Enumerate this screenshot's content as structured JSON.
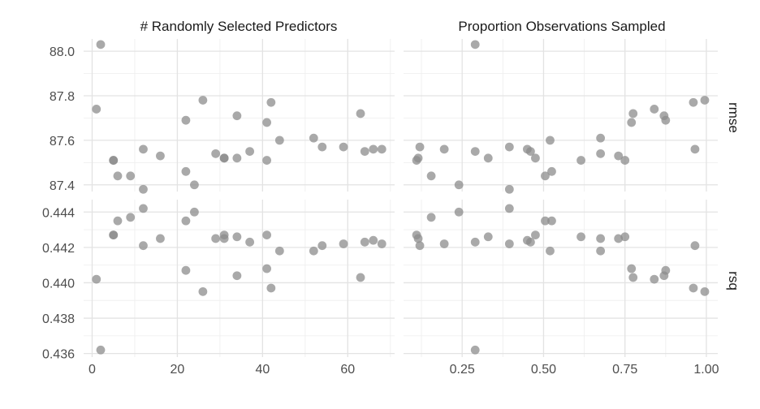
{
  "chart_data": {
    "type": "scatter",
    "title": "",
    "column_titles": [
      "# Randomly Selected Predictors",
      "Proportion Observations Sampled"
    ],
    "row_titles": [
      "rmse",
      "rsq"
    ],
    "x_axes": [
      {
        "lim": [
          -2,
          71
        ],
        "ticks": [
          0,
          20,
          40,
          60
        ],
        "tick_labels": [
          "0",
          "20",
          "40",
          "60"
        ],
        "minor": [
          10,
          30,
          50,
          70
        ]
      },
      {
        "lim": [
          0.07,
          1.035
        ],
        "ticks": [
          0.25,
          0.5,
          0.75,
          1.0
        ],
        "tick_labels": [
          "0.25",
          "0.50",
          "0.75",
          "1.00"
        ],
        "minor": [
          0.125,
          0.375,
          0.625,
          0.875
        ]
      }
    ],
    "y_axes": [
      {
        "lim": [
          87.37,
          88.055
        ],
        "ticks": [
          87.4,
          87.6,
          87.8,
          88.0
        ],
        "tick_labels": [
          "87.4",
          "87.6",
          "87.8",
          "88.0"
        ],
        "minor": [
          87.5,
          87.7,
          87.9
        ]
      },
      {
        "lim": [
          0.4358,
          0.4447
        ],
        "ticks": [
          0.436,
          0.438,
          0.44,
          0.442,
          0.444
        ],
        "tick_labels": [
          "0.436",
          "0.438",
          "0.440",
          "0.442",
          "0.444"
        ],
        "minor": [
          0.437,
          0.439,
          0.441,
          0.443
        ]
      }
    ],
    "panels": [
      {
        "row": 0,
        "col": 0,
        "points": [
          [
            1,
            87.74
          ],
          [
            2,
            88.03
          ],
          [
            5,
            87.51
          ],
          [
            5,
            87.51
          ],
          [
            6,
            87.44
          ],
          [
            9,
            87.44
          ],
          [
            12,
            87.56
          ],
          [
            12,
            87.38
          ],
          [
            16,
            87.53
          ],
          [
            22,
            87.69
          ],
          [
            22,
            87.46
          ],
          [
            24,
            87.4
          ],
          [
            26,
            87.78
          ],
          [
            29,
            87.54
          ],
          [
            31,
            87.52
          ],
          [
            31,
            87.52
          ],
          [
            34,
            87.71
          ],
          [
            34,
            87.52
          ],
          [
            37,
            87.55
          ],
          [
            41,
            87.68
          ],
          [
            41,
            87.51
          ],
          [
            42,
            87.77
          ],
          [
            44,
            87.6
          ],
          [
            52,
            87.61
          ],
          [
            54,
            87.57
          ],
          [
            59,
            87.57
          ],
          [
            63,
            87.72
          ],
          [
            64,
            87.55
          ],
          [
            66,
            87.56
          ],
          [
            68,
            87.56
          ]
        ]
      },
      {
        "row": 0,
        "col": 1,
        "points": [
          [
            0.11,
            87.51
          ],
          [
            0.115,
            87.52
          ],
          [
            0.12,
            87.57
          ],
          [
            0.155,
            87.44
          ],
          [
            0.195,
            87.56
          ],
          [
            0.24,
            87.4
          ],
          [
            0.29,
            88.03
          ],
          [
            0.29,
            87.55
          ],
          [
            0.33,
            87.52
          ],
          [
            0.395,
            87.57
          ],
          [
            0.395,
            87.38
          ],
          [
            0.45,
            87.56
          ],
          [
            0.46,
            87.55
          ],
          [
            0.475,
            87.52
          ],
          [
            0.505,
            87.44
          ],
          [
            0.52,
            87.6
          ],
          [
            0.525,
            87.46
          ],
          [
            0.615,
            87.51
          ],
          [
            0.675,
            87.61
          ],
          [
            0.675,
            87.54
          ],
          [
            0.73,
            87.53
          ],
          [
            0.75,
            87.51
          ],
          [
            0.77,
            87.68
          ],
          [
            0.775,
            87.72
          ],
          [
            0.84,
            87.74
          ],
          [
            0.87,
            87.71
          ],
          [
            0.875,
            87.69
          ],
          [
            0.96,
            87.77
          ],
          [
            0.965,
            87.56
          ],
          [
            0.995,
            87.78
          ]
        ]
      },
      {
        "row": 1,
        "col": 0,
        "points": [
          [
            1,
            0.4402
          ],
          [
            2,
            0.4362
          ],
          [
            5,
            0.4427
          ],
          [
            5,
            0.4427
          ],
          [
            6,
            0.4435
          ],
          [
            9,
            0.4437
          ],
          [
            12,
            0.4442
          ],
          [
            12,
            0.4421
          ],
          [
            16,
            0.4425
          ],
          [
            22,
            0.4435
          ],
          [
            22,
            0.4407
          ],
          [
            24,
            0.444
          ],
          [
            26,
            0.4395
          ],
          [
            29,
            0.4425
          ],
          [
            31,
            0.4427
          ],
          [
            31,
            0.4425
          ],
          [
            34,
            0.4426
          ],
          [
            34,
            0.4404
          ],
          [
            37,
            0.4423
          ],
          [
            41,
            0.4427
          ],
          [
            41,
            0.4408
          ],
          [
            42,
            0.4397
          ],
          [
            44,
            0.4418
          ],
          [
            52,
            0.4418
          ],
          [
            54,
            0.4421
          ],
          [
            59,
            0.4422
          ],
          [
            63,
            0.4403
          ],
          [
            64,
            0.4423
          ],
          [
            66,
            0.4424
          ],
          [
            68,
            0.4422
          ]
        ]
      },
      {
        "row": 1,
        "col": 1,
        "points": [
          [
            0.11,
            0.4427
          ],
          [
            0.115,
            0.4425
          ],
          [
            0.12,
            0.4421
          ],
          [
            0.155,
            0.4437
          ],
          [
            0.195,
            0.4422
          ],
          [
            0.24,
            0.444
          ],
          [
            0.29,
            0.4362
          ],
          [
            0.29,
            0.4423
          ],
          [
            0.33,
            0.4426
          ],
          [
            0.395,
            0.4442
          ],
          [
            0.395,
            0.4422
          ],
          [
            0.45,
            0.4424
          ],
          [
            0.46,
            0.4423
          ],
          [
            0.475,
            0.4427
          ],
          [
            0.505,
            0.4435
          ],
          [
            0.52,
            0.4418
          ],
          [
            0.525,
            0.4435
          ],
          [
            0.615,
            0.4426
          ],
          [
            0.675,
            0.4425
          ],
          [
            0.675,
            0.4418
          ],
          [
            0.73,
            0.4425
          ],
          [
            0.75,
            0.4426
          ],
          [
            0.77,
            0.4408
          ],
          [
            0.775,
            0.4403
          ],
          [
            0.84,
            0.4402
          ],
          [
            0.87,
            0.4404
          ],
          [
            0.875,
            0.4407
          ],
          [
            0.96,
            0.4397
          ],
          [
            0.965,
            0.4421
          ],
          [
            0.995,
            0.4395
          ]
        ]
      }
    ]
  }
}
